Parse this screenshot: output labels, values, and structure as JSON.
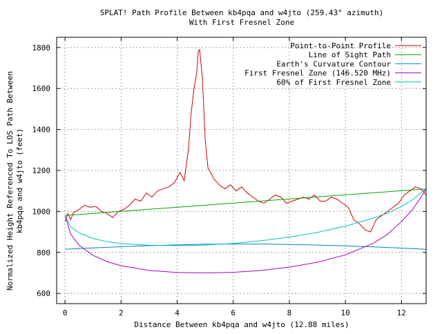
{
  "chart_data": {
    "type": "line",
    "title": [
      "SPLAT! Path Profile Between kb4pqa and w4jto (259.43° azimuth)",
      "With First Fresnel Zone"
    ],
    "xlabel": "Distance Between kb4pqa and w4jto (12.88 miles)",
    "ylabel": [
      "Normalized Height Referenced To LOS Path Between",
      "kb4pqa and w4jto (feet)"
    ],
    "xlim": [
      -0.3,
      12.88
    ],
    "ylim": [
      550,
      1850
    ],
    "xticks": [
      0,
      2,
      4,
      6,
      8,
      10,
      12
    ],
    "yticks": [
      600,
      800,
      1000,
      1200,
      1400,
      1600,
      1800
    ],
    "grid": true,
    "legend_position": "top-right",
    "series": [
      {
        "name": "Point-to-Point Profile",
        "color": "#cc0000",
        "x": [
          0.0,
          0.1,
          0.2,
          0.3,
          0.5,
          0.7,
          0.9,
          1.1,
          1.3,
          1.5,
          1.7,
          1.9,
          2.1,
          2.3,
          2.5,
          2.7,
          2.9,
          3.1,
          3.3,
          3.5,
          3.7,
          3.9,
          4.1,
          4.25,
          4.4,
          4.5,
          4.6,
          4.7,
          4.75,
          4.8,
          4.9,
          5.0,
          5.1,
          5.2,
          5.3,
          5.5,
          5.7,
          5.9,
          6.1,
          6.3,
          6.5,
          6.7,
          6.9,
          7.1,
          7.3,
          7.5,
          7.7,
          7.9,
          8.1,
          8.3,
          8.5,
          8.7,
          8.9,
          9.1,
          9.3,
          9.5,
          9.7,
          9.9,
          10.1,
          10.3,
          10.5,
          10.7,
          10.9,
          11.1,
          11.3,
          11.5,
          11.7,
          11.9,
          12.1,
          12.3,
          12.5,
          12.7,
          12.88
        ],
        "y": [
          950,
          990,
          960,
          995,
          1010,
          1030,
          1020,
          1025,
          1000,
          990,
          970,
          1000,
          1010,
          1030,
          1060,
          1050,
          1090,
          1070,
          1100,
          1110,
          1120,
          1140,
          1190,
          1150,
          1300,
          1480,
          1600,
          1680,
          1780,
          1790,
          1650,
          1350,
          1210,
          1190,
          1160,
          1130,
          1110,
          1130,
          1100,
          1120,
          1090,
          1070,
          1050,
          1040,
          1060,
          1080,
          1070,
          1040,
          1050,
          1060,
          1070,
          1060,
          1080,
          1050,
          1050,
          1070,
          1060,
          1040,
          1020,
          960,
          940,
          910,
          900,
          960,
          980,
          1000,
          1020,
          1040,
          1080,
          1100,
          1120,
          1110,
          1080
        ]
      },
      {
        "name": "Line of Sight Path",
        "color": "#00a000",
        "x": [
          0.0,
          12.88
        ],
        "y": [
          980,
          1110
        ]
      },
      {
        "name": "Earth's Curvature Contour",
        "color": "#0080c0",
        "x": [
          0.0,
          1.0,
          2.0,
          3.0,
          4.0,
          5.0,
          6.0,
          7.0,
          8.0,
          9.0,
          10.0,
          11.0,
          12.0,
          12.88
        ],
        "y": [
          815,
          822,
          828,
          833,
          837,
          840,
          841,
          841,
          839,
          836,
          832,
          827,
          821,
          815
        ]
      },
      {
        "name": "First Fresnel Zone (146.520 MHz)",
        "color": "#a000c0",
        "x": [
          0.0,
          0.2,
          0.5,
          1.0,
          1.5,
          2.0,
          3.0,
          4.0,
          5.0,
          6.0,
          7.0,
          8.0,
          9.0,
          10.0,
          11.0,
          11.5,
          12.0,
          12.4,
          12.7,
          12.88
        ],
        "y": [
          980,
          890,
          835,
          785,
          755,
          735,
          712,
          702,
          700,
          703,
          712,
          728,
          752,
          788,
          845,
          888,
          950,
          1010,
          1070,
          1110
        ]
      },
      {
        "name": "60% of First Fresnel Zone",
        "color": "#00c0c0",
        "x": [
          0.0,
          0.2,
          0.5,
          1.0,
          1.5,
          2.0,
          3.0,
          4.0,
          5.0,
          6.0,
          7.0,
          8.0,
          9.0,
          10.0,
          11.0,
          11.5,
          12.0,
          12.4,
          12.7,
          12.88
        ],
        "y": [
          980,
          925,
          895,
          868,
          852,
          843,
          835,
          833,
          836,
          844,
          857,
          875,
          898,
          928,
          968,
          992,
          1025,
          1058,
          1092,
          1110
        ]
      }
    ]
  }
}
